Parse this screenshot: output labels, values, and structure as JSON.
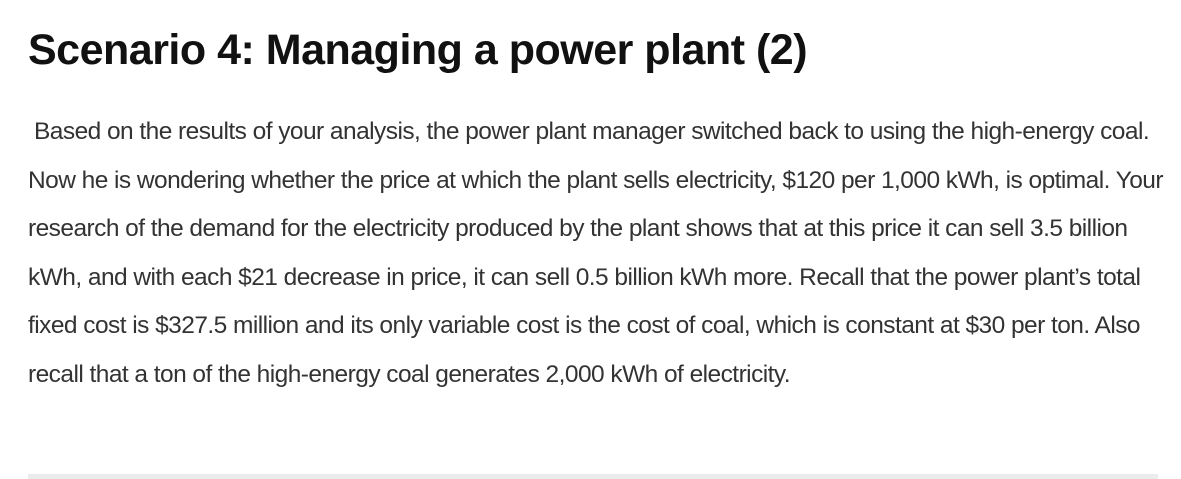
{
  "title": "Scenario 4: Managing a power plant (2)",
  "body": "Based on the results of your analysis, the power plant manager switched back to using the high-energy coal. Now he is wondering whether the price at which the plant sells electricity, $120 per 1,000 kWh, is optimal. Your research of the demand for the electricity produced by the plant shows that at this price it can sell 3.5 billion kWh, and with each $21 decrease in price, it can sell 0.5 billion kWh more. Recall that the power plant’s total fixed cost is $327.5 million and its only variable cost is the cost of coal, which is constant at $30 per ton. Also recall that a ton of the high-energy coal generates 2,000 kWh of electricity."
}
